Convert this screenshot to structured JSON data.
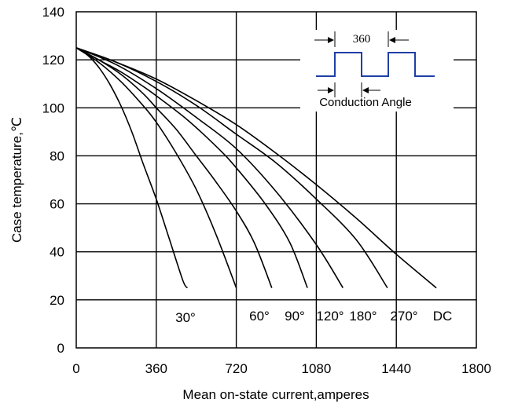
{
  "chart_data": {
    "type": "line",
    "title": "",
    "xlabel": "Mean on-state current,amperes",
    "ylabel": "Case temperature,℃",
    "xlim": [
      0,
      1800
    ],
    "ylim": [
      0,
      140
    ],
    "xticks": [
      "0",
      "360",
      "720",
      "1080",
      "1440",
      "1800"
    ],
    "yticks": [
      "0",
      "20",
      "40",
      "60",
      "80",
      "100",
      "120",
      "140"
    ],
    "grid": true,
    "legend": "none",
    "series": [
      {
        "name": "30°",
        "points": [
          [
            0,
            125
          ],
          [
            50,
            122
          ],
          [
            100,
            117
          ],
          [
            150,
            110
          ],
          [
            200,
            101
          ],
          [
            250,
            90
          ],
          [
            300,
            77
          ],
          [
            360,
            62
          ],
          [
            420,
            45
          ],
          [
            480,
            28
          ],
          [
            500,
            25
          ]
        ]
      },
      {
        "name": "60°",
        "points": [
          [
            0,
            125
          ],
          [
            100,
            119
          ],
          [
            200,
            111
          ],
          [
            300,
            101
          ],
          [
            360,
            94
          ],
          [
            450,
            81
          ],
          [
            540,
            66
          ],
          [
            630,
            47
          ],
          [
            720,
            25
          ]
        ]
      },
      {
        "name": "90°",
        "points": [
          [
            0,
            125
          ],
          [
            100,
            120
          ],
          [
            200,
            114
          ],
          [
            300,
            106
          ],
          [
            360,
            100
          ],
          [
            450,
            91
          ],
          [
            540,
            80
          ],
          [
            630,
            69
          ],
          [
            720,
            57
          ],
          [
            800,
            44
          ],
          [
            880,
            25
          ]
        ]
      },
      {
        "name": "120°",
        "points": [
          [
            0,
            125
          ],
          [
            100,
            120
          ],
          [
            200,
            115
          ],
          [
            300,
            109
          ],
          [
            360,
            105
          ],
          [
            500,
            95
          ],
          [
            640,
            83
          ],
          [
            720,
            75
          ],
          [
            850,
            60
          ],
          [
            960,
            44
          ],
          [
            1040,
            25
          ]
        ]
      },
      {
        "name": "180°",
        "points": [
          [
            0,
            125
          ],
          [
            180,
            118
          ],
          [
            360,
            108
          ],
          [
            540,
            96
          ],
          [
            720,
            83
          ],
          [
            900,
            65
          ],
          [
            1080,
            43
          ],
          [
            1200,
            25
          ]
        ]
      },
      {
        "name": "270°",
        "points": [
          [
            0,
            125
          ],
          [
            180,
            119
          ],
          [
            360,
            111
          ],
          [
            540,
            101
          ],
          [
            720,
            89
          ],
          [
            900,
            77
          ],
          [
            1080,
            62
          ],
          [
            1260,
            45
          ],
          [
            1400,
            25
          ]
        ]
      },
      {
        "name": "DC",
        "points": [
          [
            0,
            125
          ],
          [
            180,
            119
          ],
          [
            360,
            112
          ],
          [
            540,
            103
          ],
          [
            720,
            93
          ],
          [
            900,
            81
          ],
          [
            1080,
            68
          ],
          [
            1260,
            54
          ],
          [
            1440,
            39
          ],
          [
            1620,
            25
          ]
        ]
      }
    ],
    "curve_labels": [
      "30°",
      "60°",
      "90°",
      "120°",
      "180°",
      "270°",
      "DC"
    ],
    "inset": {
      "angle_label": "360",
      "caption": "Conduction Angle",
      "line_color": "#1f3fa6"
    }
  }
}
